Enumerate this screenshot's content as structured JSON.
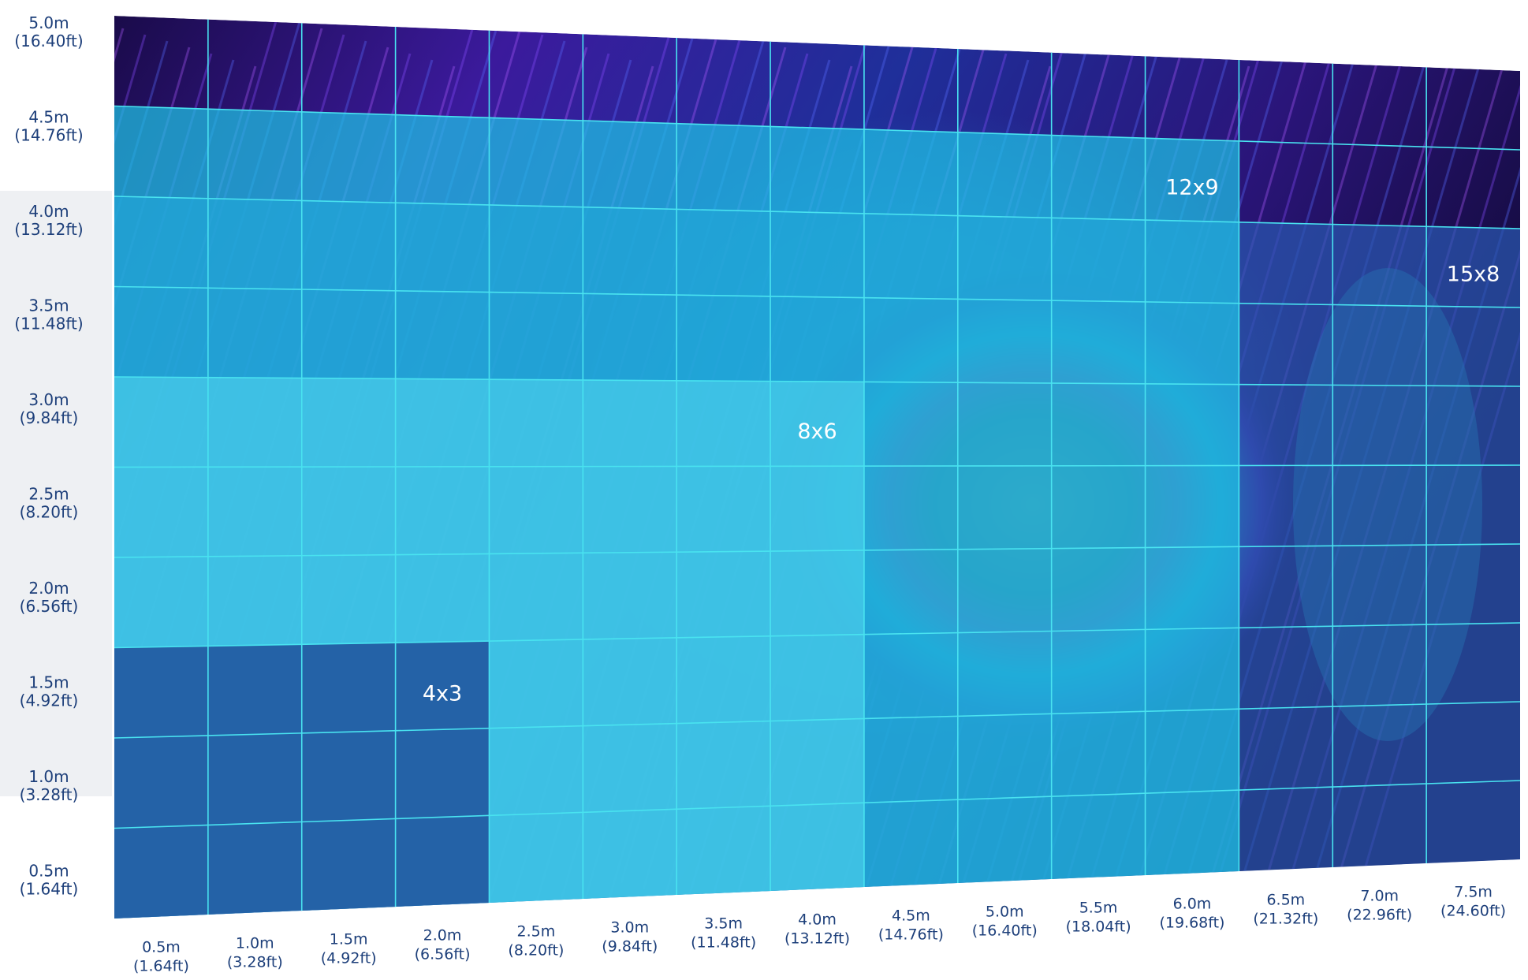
{
  "y_axis": {
    "labels": [
      {
        "m": "5.0m",
        "ft": "(16.40ft)"
      },
      {
        "m": "4.5m",
        "ft": "(14.76ft)"
      },
      {
        "m": "4.0m",
        "ft": "(13.12ft)"
      },
      {
        "m": "3.5m",
        "ft": "(11.48ft)"
      },
      {
        "m": "3.0m",
        "ft": "(9.84ft)"
      },
      {
        "m": "2.5m",
        "ft": "(8.20ft)"
      },
      {
        "m": "2.0m",
        "ft": "(6.56ft)"
      },
      {
        "m": "1.5m",
        "ft": "(4.92ft)"
      },
      {
        "m": "1.0m",
        "ft": "(3.28ft)"
      },
      {
        "m": "0.5m",
        "ft": "(1.64ft)"
      }
    ]
  },
  "x_axis": {
    "labels": [
      {
        "m": "0.5m",
        "ft": "(1.64ft)"
      },
      {
        "m": "1.0m",
        "ft": "(3.28ft)"
      },
      {
        "m": "1.5m",
        "ft": "(4.92ft)"
      },
      {
        "m": "2.0m",
        "ft": "(6.56ft)"
      },
      {
        "m": "2.5m",
        "ft": "(8.20ft)"
      },
      {
        "m": "3.0m",
        "ft": "(9.84ft)"
      },
      {
        "m": "3.5m",
        "ft": "(11.48ft)"
      },
      {
        "m": "4.0m",
        "ft": "(13.12ft)"
      },
      {
        "m": "4.5m",
        "ft": "(14.76ft)"
      },
      {
        "m": "5.0m",
        "ft": "(16.40ft)"
      },
      {
        "m": "5.5m",
        "ft": "(18.04ft)"
      },
      {
        "m": "6.0m",
        "ft": "(19.68ft)"
      },
      {
        "m": "6.5m",
        "ft": "(21.32ft)"
      },
      {
        "m": "7.0m",
        "ft": "(22.96ft)"
      },
      {
        "m": "7.5m",
        "ft": "(24.60ft)"
      }
    ]
  },
  "screens": [
    {
      "label": "4x3",
      "cols": 4,
      "rows": 3,
      "color": "#1a3d8f"
    },
    {
      "label": "8x6",
      "cols": 8,
      "rows": 6,
      "color": "#4fd3ee"
    },
    {
      "label": "12x9",
      "cols": 12,
      "rows": 9,
      "color": "#1ec3e6"
    },
    {
      "label": "15x8",
      "cols": 15,
      "rows": 8,
      "color": "#2a58b0"
    }
  ],
  "colors": {
    "grid_line": "#49e3f0",
    "axis_text": "#1d3f7a",
    "screen_label": "#ffffff"
  },
  "background": "peacock-feather-photo"
}
